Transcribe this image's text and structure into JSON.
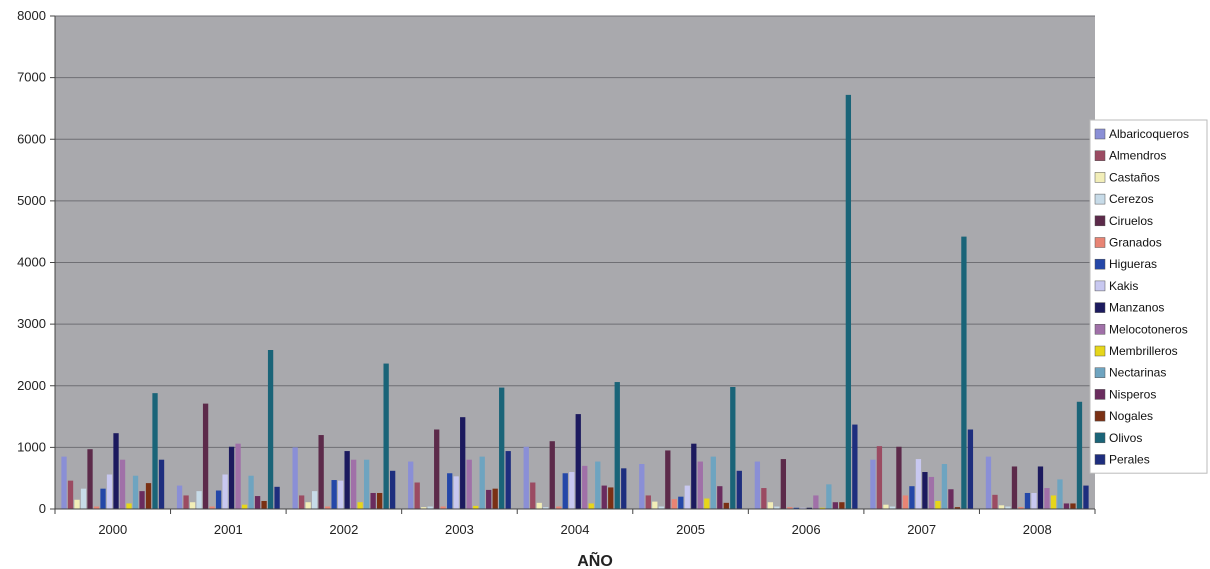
{
  "chart_data": {
    "type": "bar",
    "xlabel": "AÑO",
    "ylabel": "",
    "ylim": [
      0,
      8000
    ],
    "yticks": [
      0,
      1000,
      2000,
      3000,
      4000,
      5000,
      6000,
      7000,
      8000
    ],
    "grid": true,
    "legend_position": "right",
    "categories": [
      "2000",
      "2001",
      "2002",
      "2003",
      "2004",
      "2005",
      "2006",
      "2007",
      "2008"
    ],
    "series": [
      {
        "name": "Albaricoqueros",
        "color": "#8a8fd6",
        "values": [
          850,
          380,
          1000,
          770,
          1010,
          730,
          770,
          800,
          850
        ]
      },
      {
        "name": "Almendros",
        "color": "#9b4b62",
        "values": [
          460,
          220,
          220,
          430,
          430,
          220,
          340,
          1020,
          230
        ]
      },
      {
        "name": "Castaños",
        "color": "#f2eeb8",
        "values": [
          150,
          110,
          110,
          30,
          100,
          120,
          110,
          70,
          60
        ]
      },
      {
        "name": "Cerezos",
        "color": "#c7dbe8",
        "values": [
          330,
          290,
          290,
          40,
          30,
          40,
          40,
          40,
          40
        ]
      },
      {
        "name": "Ciruelos",
        "color": "#5c2a4a",
        "values": [
          970,
          1710,
          1200,
          1290,
          1100,
          950,
          810,
          1010,
          690
        ]
      },
      {
        "name": "Granados",
        "color": "#e88474",
        "values": [
          40,
          40,
          40,
          40,
          40,
          160,
          30,
          220,
          30
        ]
      },
      {
        "name": "Higueras",
        "color": "#2447a8",
        "values": [
          330,
          300,
          470,
          580,
          580,
          200,
          20,
          370,
          260
        ]
      },
      {
        "name": "Kakis",
        "color": "#c8c8f0",
        "values": [
          560,
          560,
          460,
          530,
          600,
          380,
          20,
          810,
          260
        ]
      },
      {
        "name": "Manzanos",
        "color": "#1c1a5e",
        "values": [
          1230,
          1010,
          940,
          1490,
          1540,
          1060,
          20,
          600,
          690
        ]
      },
      {
        "name": "Melocotoneros",
        "color": "#a070a8",
        "values": [
          800,
          1060,
          800,
          800,
          700,
          770,
          220,
          520,
          340
        ]
      },
      {
        "name": "Membrilleros",
        "color": "#e6d61a",
        "values": [
          90,
          70,
          110,
          50,
          90,
          170,
          20,
          130,
          220
        ]
      },
      {
        "name": "Nectarinas",
        "color": "#6ea4c0",
        "values": [
          540,
          540,
          800,
          850,
          770,
          850,
          400,
          730,
          480
        ]
      },
      {
        "name": "Nisperos",
        "color": "#6a2c5e",
        "values": [
          290,
          210,
          260,
          310,
          380,
          370,
          110,
          320,
          90
        ]
      },
      {
        "name": "Nogales",
        "color": "#7a3014",
        "values": [
          420,
          130,
          260,
          330,
          350,
          100,
          110,
          30,
          90
        ]
      },
      {
        "name": "Olivos",
        "color": "#1a6478",
        "values": [
          1880,
          2580,
          2360,
          1970,
          2060,
          1980,
          6720,
          4420,
          1740
        ]
      },
      {
        "name": "Perales",
        "color": "#1e2e7e",
        "values": [
          800,
          360,
          620,
          940,
          660,
          620,
          1370,
          1290,
          380
        ]
      }
    ]
  }
}
